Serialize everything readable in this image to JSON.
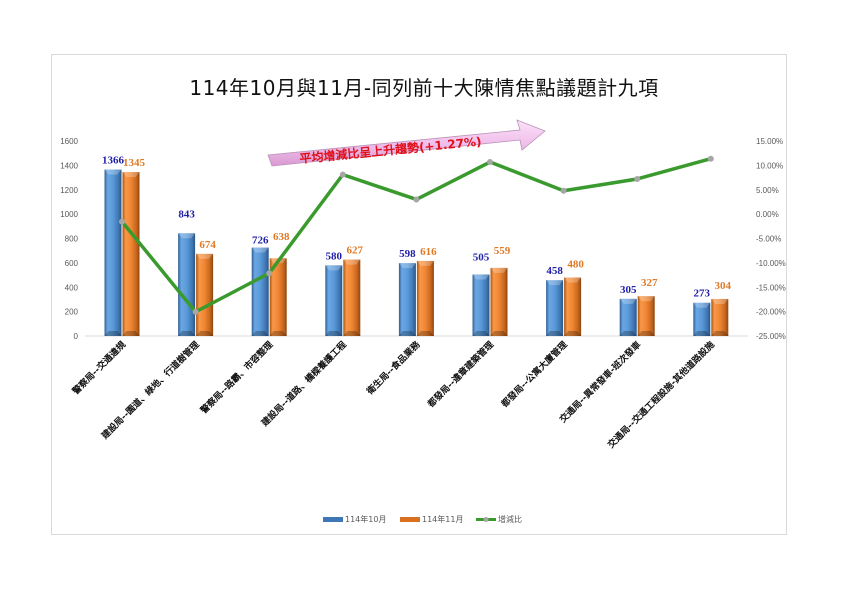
{
  "title": "114年10月與11月-同列前十大陳情焦點議題計九項",
  "annotation": "平均增減比呈上升趨勢(+1.27%)",
  "legend": [
    "114年10月",
    "114年11月",
    "增減比"
  ],
  "colors": {
    "oct": "#4f8fd0",
    "nov": "#ee7d2f",
    "ratio": "#3a9a2e",
    "marker": "#a6a6a6",
    "oct_label": "#1f1fa8",
    "nov_label": "#e07a26",
    "annotation_text": "#e0101a",
    "arrow_fill": "#f3c6ee"
  },
  "chart_data": {
    "type": "bar",
    "title": "114年10月與11月-同列前十大陳情焦點議題計九項",
    "categories": [
      "警察局--交通違規",
      "建設局--園道、綠地、行道樹管理",
      "警察局--路霸、市容整理",
      "建設局--道路、橋樑養護工程",
      "衛生局--食品業務",
      "都發局--違章建築管理",
      "都發局--公寓大廈管理",
      "交通局--異常發車-班次發車",
      "交通局--交通工程設施-其他道路設施"
    ],
    "series": [
      {
        "name": "114年10月",
        "type": "bar",
        "axis": "left",
        "values": [
          1366,
          843,
          726,
          580,
          598,
          505,
          458,
          305,
          273
        ]
      },
      {
        "name": "114年11月",
        "type": "bar",
        "axis": "left",
        "values": [
          1345,
          674,
          638,
          627,
          616,
          559,
          480,
          327,
          304
        ]
      },
      {
        "name": "增減比",
        "type": "line",
        "axis": "right",
        "values": [
          -1.54,
          -20.05,
          -12.12,
          8.1,
          3.01,
          10.69,
          4.8,
          7.21,
          11.36
        ]
      }
    ],
    "left_axis": {
      "ylim": [
        0,
        1600
      ],
      "ticks": [
        "0",
        "200",
        "400",
        "600",
        "800",
        "1000",
        "1200",
        "1400",
        "1600"
      ]
    },
    "right_axis": {
      "ylim": [
        -25,
        15
      ],
      "ticks": [
        "-25.00%",
        "-20.00%",
        "-15.00%",
        "-10.00%",
        "-5.00%",
        "0.00%",
        "5.00%",
        "10.00%",
        "15.00%"
      ]
    },
    "annotation": "平均增減比呈上升趨勢(+1.27%)",
    "legend_position": "bottom",
    "grid": false,
    "xlabel": "",
    "ylabel": ""
  }
}
